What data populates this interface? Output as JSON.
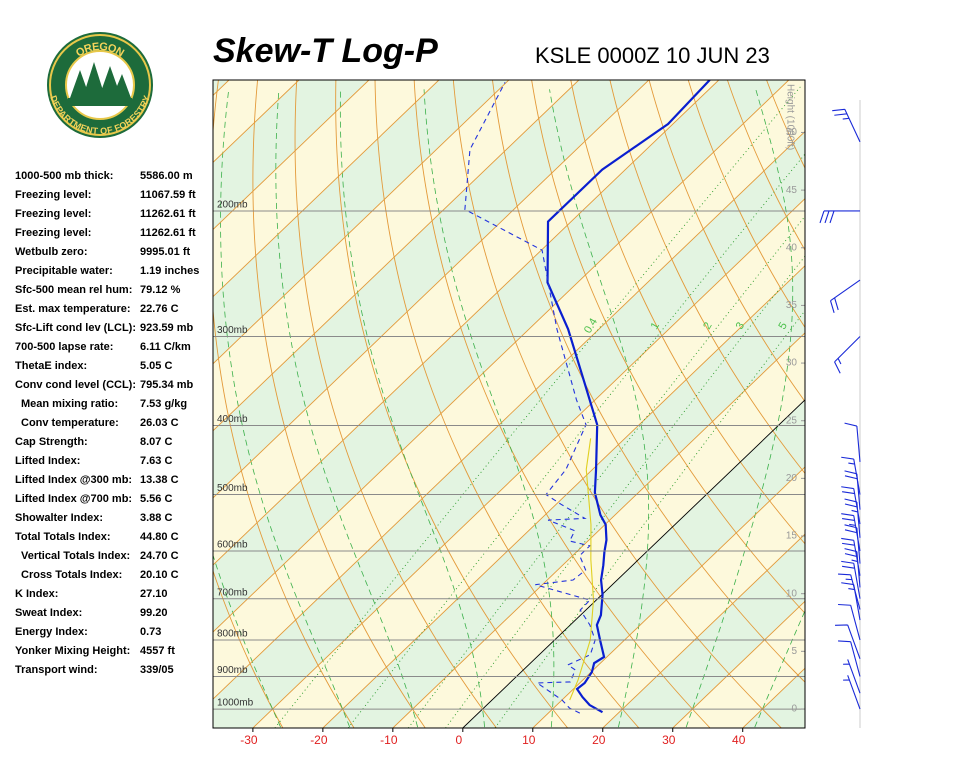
{
  "logo": {
    "top": "OREGON",
    "bottom": "DEPARTMENT OF FORESTRY"
  },
  "indices": {
    "rows": [
      [
        "1000-500 mb thick:",
        "5586.00 m"
      ],
      [
        "Freezing level:",
        "11067.59 ft"
      ],
      [
        "Freezing level:",
        "11262.61 ft"
      ],
      [
        "Freezing level:",
        "11262.61 ft"
      ],
      [
        "Wetbulb zero:",
        "9995.01 ft"
      ],
      [
        "Precipitable water:",
        "1.19 inches"
      ],
      [
        "Sfc-500 mean rel hum:",
        "79.12 %"
      ],
      [
        "Est. max temperature:",
        "22.76 C"
      ],
      [
        "Sfc-Lift cond lev (LCL):",
        "923.59 mb"
      ],
      [
        "700-500 lapse rate:",
        "6.11 C/km"
      ],
      [
        "ThetaE index:",
        "5.05 C"
      ],
      [
        "Conv cond level (CCL):",
        "795.34 mb"
      ],
      [
        "Mean mixing ratio:",
        "7.53 g/kg"
      ],
      [
        "Conv temperature:",
        "26.03 C"
      ],
      [
        "Cap Strength:",
        "8.07 C"
      ],
      [
        "Lifted Index:",
        "7.63 C"
      ],
      [
        "Lifted Index @300 mb:",
        "13.38 C"
      ],
      [
        "Lifted Index @700 mb:",
        "5.56 C"
      ],
      [
        "Showalter Index:",
        "3.88 C"
      ],
      [
        "Total Totals Index:",
        "44.80 C"
      ],
      [
        "Vertical Totals Index:",
        "24.70 C"
      ],
      [
        "Cross Totals Index:",
        "20.10 C"
      ],
      [
        "K Index:",
        "27.10"
      ],
      [
        "Sweat Index:",
        "99.20"
      ],
      [
        "Energy Index:",
        "0.73"
      ],
      [
        "Yonker Mixing Height:",
        "4557 ft"
      ],
      [
        "Transport wind:",
        "339/05"
      ]
    ]
  },
  "chart_data": {
    "type": "skew-t",
    "title": "Skew-T Log-P",
    "subtitle": "KSLE 0000Z 10 JUN 23",
    "xlim": [
      -35.7,
      48.9
    ],
    "xticks": [
      -30,
      -20,
      -10,
      0,
      10,
      20,
      30,
      40
    ],
    "ylim": [
      1063,
      131
    ],
    "ylog": true,
    "yticks": [
      {
        "value": 200,
        "label": "200mb"
      },
      {
        "value": 300,
        "label": "300mb"
      },
      {
        "value": 400,
        "label": "400mb"
      },
      {
        "value": 500,
        "label": "500mb"
      },
      {
        "value": 600,
        "label": "600mb"
      },
      {
        "value": 700,
        "label": "700mb"
      },
      {
        "value": 800,
        "label": "800mb"
      },
      {
        "value": 900,
        "label": "900mb"
      },
      {
        "value": 1000,
        "label": "1000mb"
      }
    ],
    "y2label": "Height (1000ft)",
    "y2lim": [
      -1.65,
      54.55
    ],
    "y2ticks": [
      0,
      5,
      10,
      15,
      20,
      25,
      30,
      35,
      40,
      45,
      50
    ],
    "mixing_ratios": [
      0.4,
      1,
      2,
      3,
      5
    ],
    "series": [
      {
        "color": "#0a1fd0",
        "style": "solid",
        "pressure": [
          1010,
          987,
          962,
          937,
          919,
          887,
          862,
          845,
          800,
          762,
          738,
          691,
          659,
          628,
          602,
          579,
          551,
          534,
          497,
          461,
          399,
          343,
          293,
          252,
          207,
          175,
          151,
          131
        ],
        "values": [
          17.6,
          14.7,
          12.5,
          10.5,
          10.7,
          10.1,
          9.1,
          9.6,
          6.5,
          3.8,
          2.9,
          0.1,
          -2.3,
          -4.2,
          -6.0,
          -7.5,
          -9.9,
          -12.1,
          -16.2,
          -19.5,
          -26.0,
          -35.0,
          -44.4,
          -54.3,
          -63.3,
          -63.3,
          -60.7,
          -61.3
        ]
      },
      {
        "color": "#2233dd",
        "style": "dashed",
        "pressure": [
          1013,
          997,
          971,
          919,
          916,
          881,
          867,
          839,
          800,
          762,
          726,
          703,
          696,
          669,
          659,
          638,
          609,
          590,
          581,
          562,
          543,
          540,
          516,
          500,
          461,
          399,
          368,
          293,
          227,
          199,
          164,
          132
        ],
        "values": [
          14.5,
          12.3,
          10.0,
          3.9,
          8.5,
          7.4,
          5.6,
          7.3,
          5.8,
          2.8,
          -0.8,
          -0.9,
          -3.0,
          -11.0,
          -6.3,
          -6.0,
          -9.0,
          -9.0,
          -12.6,
          -13.4,
          -18.8,
          -13.8,
          -19.3,
          -22.9,
          -23.8,
          -27.6,
          -32.7,
          -46.0,
          -59.9,
          -77.0,
          -85.2,
          -90.2
        ]
      },
      {
        "color": "#e0d020",
        "style": "solid",
        "pressure": [
          971,
          910,
          800,
          703,
          617,
          551,
          461,
          417
        ],
        "values": [
          11.1,
          9.3,
          5.1,
          -0.4,
          -6.8,
          -12.0,
          -20.9,
          -24.9
        ]
      }
    ],
    "winds": [
      {
        "pressure": 160,
        "direction": 335,
        "speed": 25
      },
      {
        "pressure": 200,
        "direction": 270,
        "speed": 30
      },
      {
        "pressure": 250,
        "direction": 235,
        "speed": 20
      },
      {
        "pressure": 300,
        "direction": 225,
        "speed": 15
      },
      {
        "pressure": 450,
        "direction": 355,
        "speed": 10
      },
      {
        "pressure": 500,
        "direction": 350,
        "speed": 15
      },
      {
        "pressure": 525,
        "direction": 355,
        "speed": 20
      },
      {
        "pressure": 550,
        "direction": 350,
        "speed": 20
      },
      {
        "pressure": 575,
        "direction": 355,
        "speed": 25
      },
      {
        "pressure": 600,
        "direction": 350,
        "speed": 25
      },
      {
        "pressure": 625,
        "direction": 355,
        "speed": 20
      },
      {
        "pressure": 650,
        "direction": 350,
        "speed": 20
      },
      {
        "pressure": 675,
        "direction": 355,
        "speed": 25
      },
      {
        "pressure": 700,
        "direction": 350,
        "speed": 20
      },
      {
        "pressure": 725,
        "direction": 345,
        "speed": 15
      },
      {
        "pressure": 750,
        "direction": 350,
        "speed": 15
      },
      {
        "pressure": 800,
        "direction": 345,
        "speed": 10
      },
      {
        "pressure": 850,
        "direction": 340,
        "speed": 10
      },
      {
        "pressure": 900,
        "direction": 345,
        "speed": 10
      },
      {
        "pressure": 950,
        "direction": 340,
        "speed": 5
      },
      {
        "pressure": 1000,
        "direction": 340,
        "speed": 5
      }
    ]
  }
}
